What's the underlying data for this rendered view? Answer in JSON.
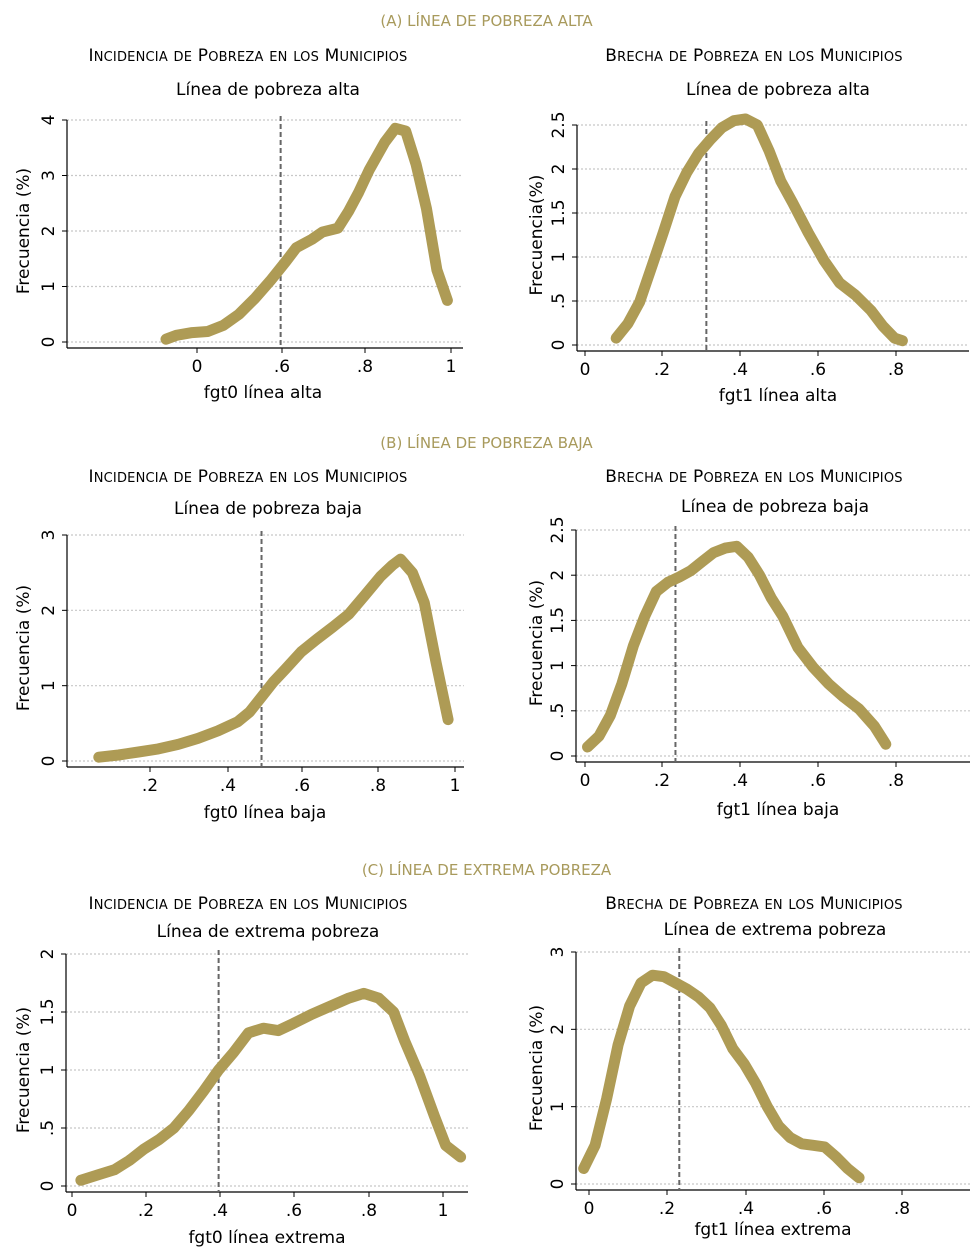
{
  "sections": [
    {
      "label": "(A) LÍNEA DE POBREZA ALTA"
    },
    {
      "label": "(B) LÍNEA DE POBREZA BAJA"
    },
    {
      "label": "(C) LÍNEA DE EXTREMA POBREZA"
    }
  ],
  "colors": {
    "curve": "#ae9b55",
    "grid": "#c8c8c8",
    "vline": "#666666",
    "section": "#a89a5c"
  },
  "chart_data": [
    {
      "type": "line",
      "title": "Incidencia de Pobreza en los Municipios",
      "subtitle": "Línea de pobreza alta",
      "xlabel": "fgt0 línea alta",
      "ylabel": "Frecuencia (%)",
      "xticks": [
        "0",
        ".6",
        ".8",
        "1"
      ],
      "yticks": [
        "0",
        "1",
        "2",
        "3",
        "4"
      ],
      "xlim": [
        0.3,
        1.06
      ],
      "ylim": [
        0,
        4
      ],
      "vline": 0.71,
      "grid": true,
      "x": [
        0.49,
        0.51,
        0.54,
        0.57,
        0.6,
        0.63,
        0.66,
        0.69,
        0.72,
        0.74,
        0.77,
        0.79,
        0.82,
        0.84,
        0.86,
        0.88,
        0.91,
        0.93,
        0.95,
        0.97,
        0.99,
        1.01,
        1.03
      ],
      "y": [
        0.05,
        0.12,
        0.17,
        0.19,
        0.3,
        0.5,
        0.78,
        1.1,
        1.45,
        1.7,
        1.85,
        1.98,
        2.05,
        2.35,
        2.7,
        3.1,
        3.6,
        3.85,
        3.8,
        3.2,
        2.4,
        1.3,
        0.75
      ]
    },
    {
      "type": "line",
      "title": "Brecha de Pobreza en los Municipios",
      "subtitle": "Línea de pobreza alta",
      "xlabel": "fgt1 línea alta",
      "ylabel": "Frecuencia(%)",
      "xticks": [
        "0",
        ".2",
        ".4",
        ".6",
        ".8"
      ],
      "yticks": [
        "0",
        ".5",
        "1",
        "1.5",
        "2",
        "2.5"
      ],
      "xlim": [
        -0.01,
        0.99
      ],
      "ylim": [
        0,
        2.55
      ],
      "vline": 0.32,
      "grid": true,
      "x": [
        0.09,
        0.12,
        0.15,
        0.18,
        0.21,
        0.24,
        0.27,
        0.3,
        0.33,
        0.36,
        0.39,
        0.42,
        0.45,
        0.48,
        0.51,
        0.54,
        0.58,
        0.62,
        0.66,
        0.7,
        0.74,
        0.77,
        0.8,
        0.82
      ],
      "y": [
        0.08,
        0.25,
        0.5,
        0.9,
        1.3,
        1.72,
        2.0,
        2.22,
        2.38,
        2.52,
        2.6,
        2.62,
        2.55,
        2.25,
        1.9,
        1.65,
        1.3,
        0.98,
        0.72,
        0.58,
        0.4,
        0.22,
        0.08,
        0.05
      ]
    },
    {
      "type": "line",
      "title": "Incidencia de Pobreza en los Municipios",
      "subtitle": "Línea de pobreza baja",
      "xlabel": "fgt0 línea baja",
      "ylabel": "Frecuencia (%)",
      "xticks": [
        ".2",
        ".4",
        ".6",
        ".8",
        "1"
      ],
      "yticks": [
        "0",
        "1",
        "2",
        "3"
      ],
      "xlim": [
        0.07,
        1.07
      ],
      "ylim": [
        0,
        3
      ],
      "vline": 0.56,
      "grid": true,
      "x": [
        0.15,
        0.2,
        0.25,
        0.3,
        0.35,
        0.4,
        0.45,
        0.5,
        0.53,
        0.56,
        0.59,
        0.62,
        0.66,
        0.7,
        0.74,
        0.78,
        0.82,
        0.86,
        0.89,
        0.91,
        0.94,
        0.97,
        1.0,
        1.03
      ],
      "y": [
        0.05,
        0.08,
        0.12,
        0.16,
        0.22,
        0.3,
        0.4,
        0.52,
        0.65,
        0.85,
        1.05,
        1.22,
        1.45,
        1.62,
        1.78,
        1.95,
        2.2,
        2.45,
        2.6,
        2.68,
        2.5,
        2.1,
        1.3,
        0.55
      ]
    },
    {
      "type": "line",
      "title": "Brecha de Pobreza en los Municipios",
      "subtitle": "Línea de pobreza baja",
      "xlabel": "fgt1 línea baja",
      "ylabel": "Frecuencia (%)",
      "xticks": [
        "0",
        ".2",
        ".4",
        ".6",
        ".8"
      ],
      "yticks": [
        "0",
        ".5",
        "1",
        "1.5",
        "2",
        "2.5"
      ],
      "xlim": [
        -0.03,
        1.0
      ],
      "ylim": [
        0,
        2.5
      ],
      "vline": 0.23,
      "grid": true,
      "x": [
        0.0,
        0.03,
        0.06,
        0.09,
        0.12,
        0.15,
        0.18,
        0.21,
        0.24,
        0.27,
        0.3,
        0.33,
        0.36,
        0.39,
        0.42,
        0.45,
        0.48,
        0.51,
        0.55,
        0.59,
        0.63,
        0.67,
        0.71,
        0.75,
        0.78
      ],
      "y": [
        0.1,
        0.22,
        0.45,
        0.8,
        1.22,
        1.55,
        1.82,
        1.92,
        1.98,
        2.05,
        2.15,
        2.25,
        2.3,
        2.32,
        2.2,
        2.0,
        1.75,
        1.55,
        1.2,
        0.98,
        0.8,
        0.65,
        0.52,
        0.33,
        0.13
      ]
    },
    {
      "type": "line",
      "title": "Incidencia de Pobreza en los Municipios",
      "subtitle": "Línea de extrema pobreza",
      "xlabel": "fgt0 línea extrema",
      "ylabel": "Frecuencia (%)",
      "xticks": [
        "0",
        ".2",
        ".4",
        ".6",
        ".8",
        "1"
      ],
      "yticks": [
        "0",
        ".5",
        "1",
        "1.5",
        "2"
      ],
      "xlim": [
        -0.01,
        1.07
      ],
      "ylim": [
        0,
        2
      ],
      "vline": 0.4,
      "grid": true,
      "x": [
        0.03,
        0.08,
        0.12,
        0.16,
        0.2,
        0.24,
        0.28,
        0.32,
        0.36,
        0.4,
        0.44,
        0.48,
        0.52,
        0.56,
        0.6,
        0.65,
        0.7,
        0.75,
        0.79,
        0.83,
        0.87,
        0.9,
        0.94,
        0.98,
        1.01,
        1.05
      ],
      "y": [
        0.05,
        0.1,
        0.14,
        0.22,
        0.32,
        0.4,
        0.5,
        0.65,
        0.82,
        1.0,
        1.15,
        1.32,
        1.36,
        1.34,
        1.4,
        1.48,
        1.55,
        1.62,
        1.66,
        1.62,
        1.5,
        1.25,
        0.95,
        0.6,
        0.35,
        0.25
      ]
    },
    {
      "type": "line",
      "title": "Brecha de Pobreza en los Municipios",
      "subtitle": "Línea de extrema pobreza",
      "xlabel": "fgt1 línea extrema",
      "ylabel": "Frecuencia (%)",
      "xticks": [
        "0",
        ".2",
        ".4",
        ".6",
        ".8"
      ],
      "yticks": [
        "0",
        "1",
        "2",
        "3"
      ],
      "xlim": [
        -0.04,
        0.99
      ],
      "ylim": [
        0,
        3
      ],
      "vline": 0.23,
      "grid": true,
      "x": [
        -0.02,
        0.01,
        0.04,
        0.07,
        0.1,
        0.13,
        0.16,
        0.19,
        0.22,
        0.25,
        0.28,
        0.31,
        0.34,
        0.37,
        0.4,
        0.43,
        0.46,
        0.49,
        0.52,
        0.55,
        0.58,
        0.61,
        0.64,
        0.67,
        0.7
      ],
      "y": [
        0.2,
        0.5,
        1.1,
        1.8,
        2.3,
        2.6,
        2.7,
        2.68,
        2.6,
        2.52,
        2.42,
        2.28,
        2.05,
        1.75,
        1.55,
        1.3,
        1.0,
        0.75,
        0.6,
        0.52,
        0.5,
        0.48,
        0.35,
        0.2,
        0.08
      ]
    }
  ]
}
